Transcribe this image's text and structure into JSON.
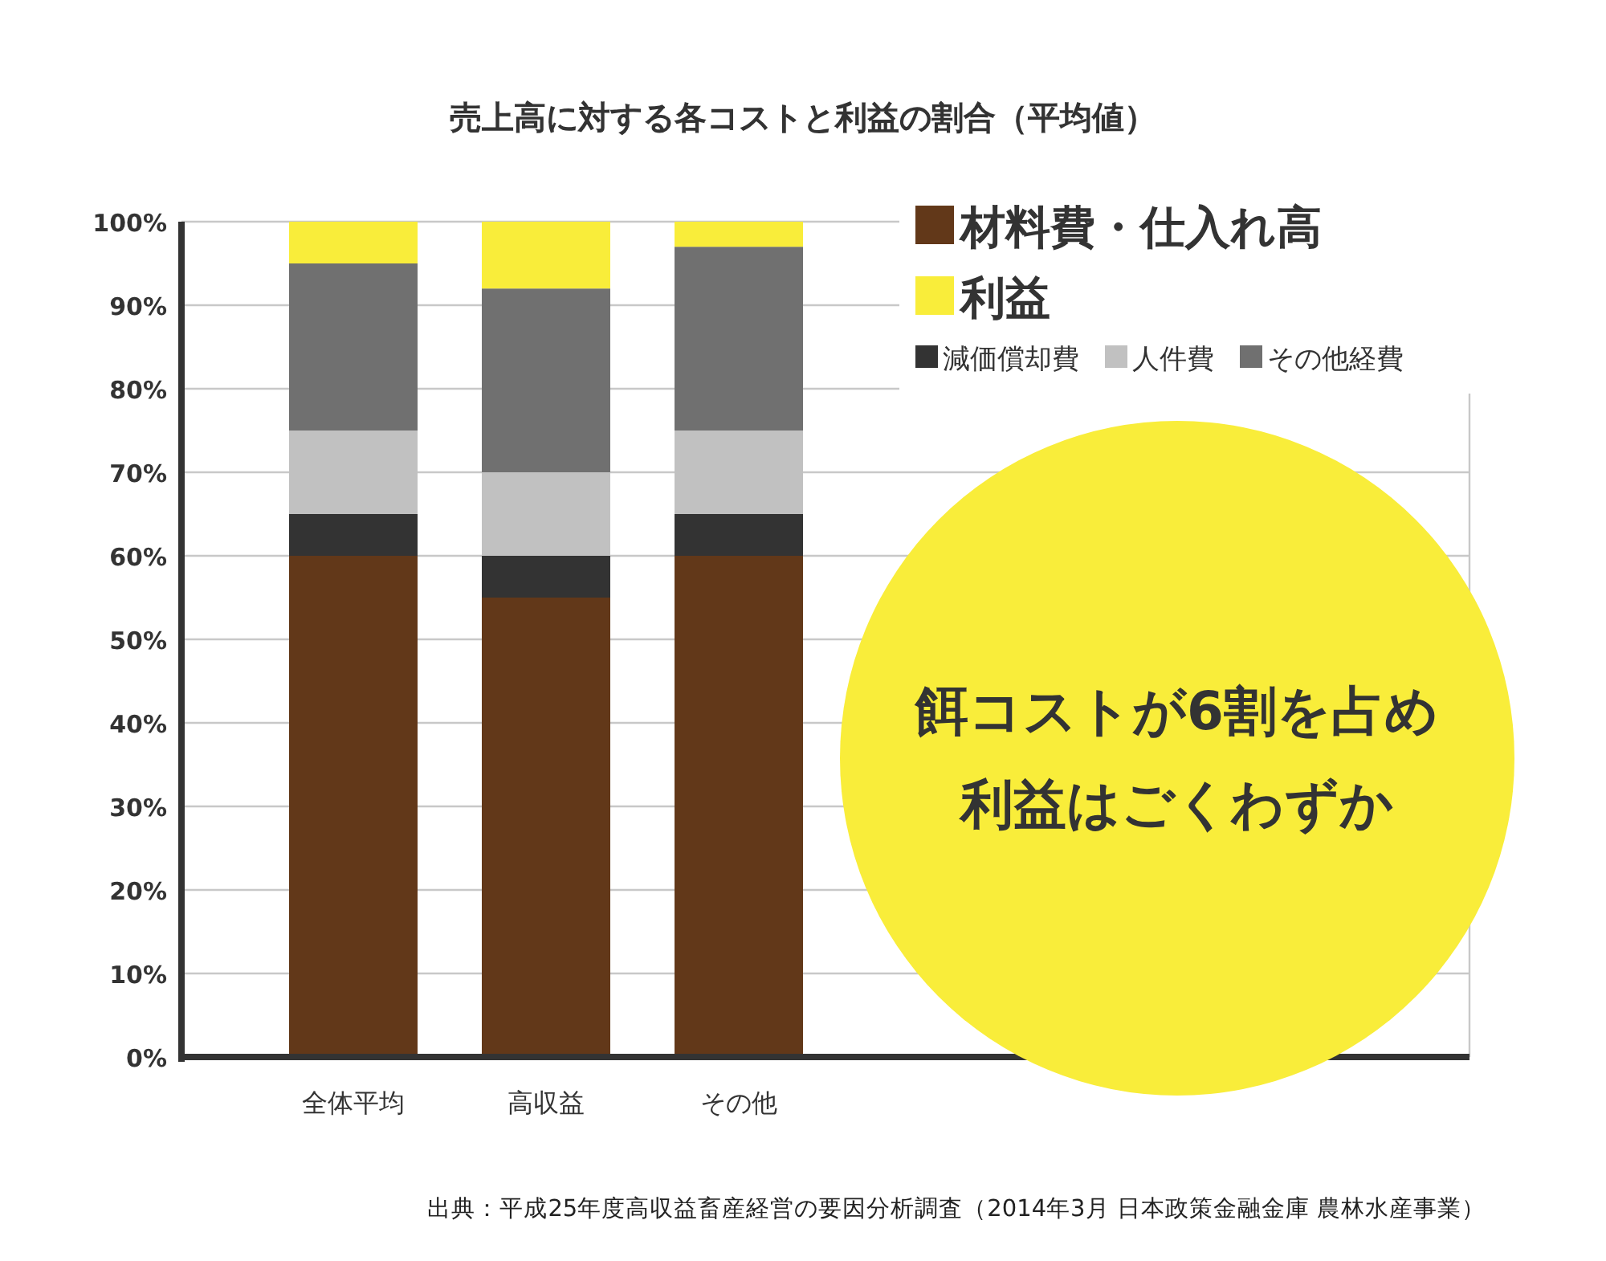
{
  "chart_data": {
    "type": "bar",
    "stacked": true,
    "title": "売上高に対する各コストと利益の割合（平均値）",
    "categories": [
      "全体平均",
      "高収益",
      "その他"
    ],
    "series": [
      {
        "name": "材料費・仕入れ高",
        "color": "#623819",
        "values": [
          60,
          55,
          60
        ]
      },
      {
        "name": "減価償却費",
        "color": "#333333",
        "values": [
          5,
          5,
          5
        ]
      },
      {
        "name": "人件費",
        "color": "#c1c1c1",
        "values": [
          10,
          10,
          10
        ]
      },
      {
        "name": "その他経費",
        "color": "#707070",
        "values": [
          20,
          22,
          22
        ]
      },
      {
        "name": "利益",
        "color": "#f9ed3a",
        "values": [
          5,
          8,
          3
        ]
      }
    ],
    "ylim": [
      0,
      100
    ],
    "yticks": [
      {
        "value": 0,
        "label": "0%"
      },
      {
        "value": 10,
        "label": "10%"
      },
      {
        "value": 20,
        "label": "20%"
      },
      {
        "value": 30,
        "label": "30%"
      },
      {
        "value": 40,
        "label": "40%"
      },
      {
        "value": 50,
        "label": "50%"
      },
      {
        "value": 60,
        "label": "60%"
      },
      {
        "value": 70,
        "label": "70%"
      },
      {
        "value": 80,
        "label": "80%"
      },
      {
        "value": 90,
        "label": "90%"
      },
      {
        "value": 100,
        "label": "100%"
      }
    ],
    "grid": "y",
    "legend": "top right",
    "annotations": [
      "餌コストが6割を占め",
      "利益はごくわずか",
      "出典：平成25年度高収益畜産経営の要因分析調査（2014年3月 日本政策金融金庫 農林水産事業）"
    ]
  }
}
